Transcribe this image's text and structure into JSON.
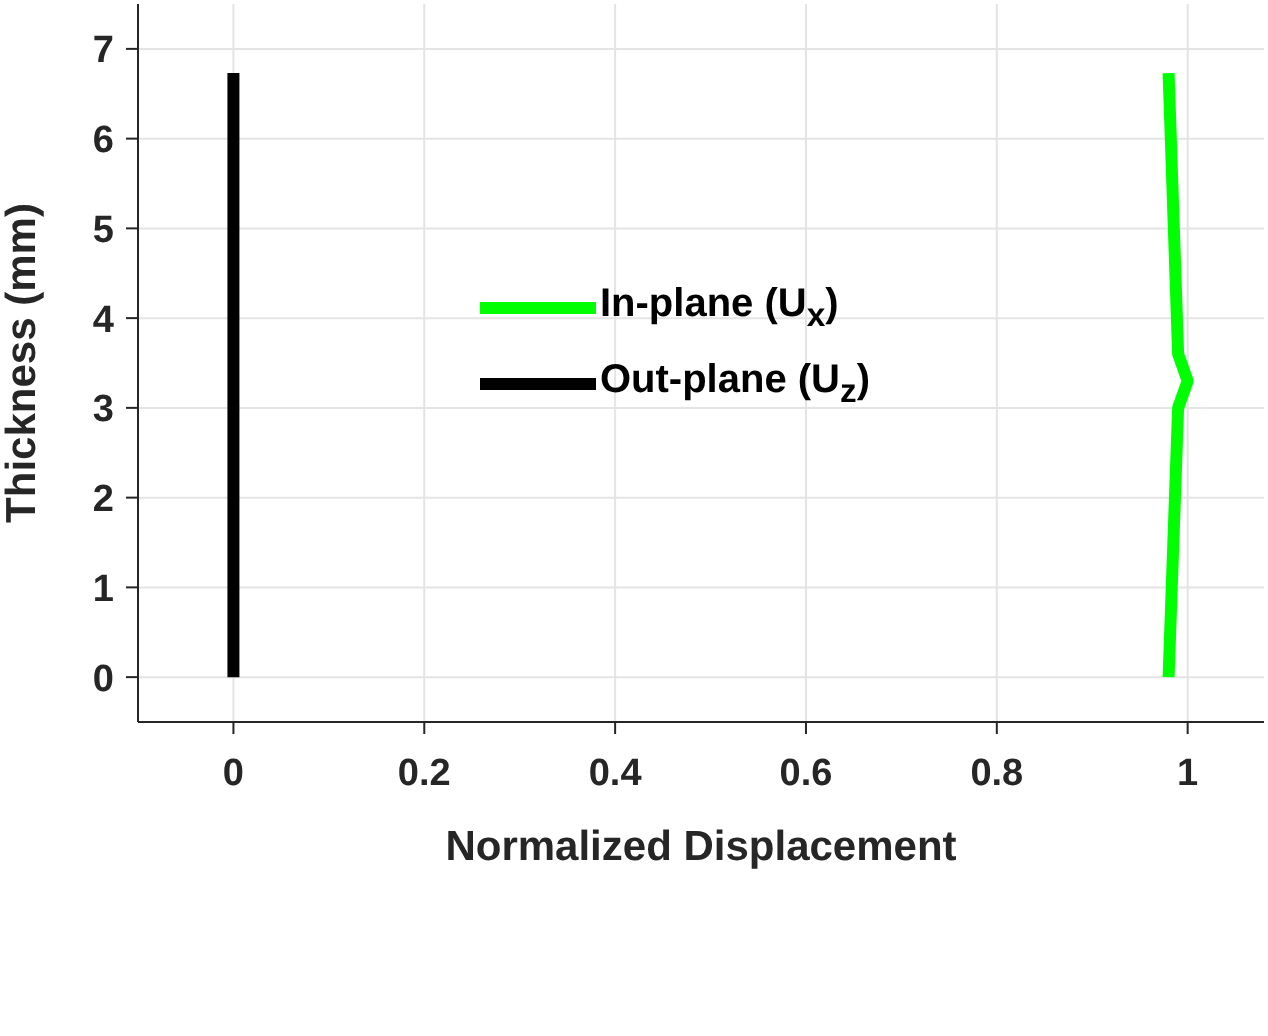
{
  "chart_data": {
    "type": "line",
    "xlabel": "Normalized Displacement",
    "ylabel": "Thickness (mm)",
    "series": [
      {
        "name": "In-plane (U$_{x}$)",
        "color": "#00ff00",
        "x": [
          0.98,
          0.99,
          1.0,
          0.99,
          0.98
        ],
        "values": [
          0,
          3.0,
          3.3,
          3.6,
          6.73
        ]
      },
      {
        "name": "Out-plane (U$_{z}$)",
        "color": "#000000",
        "x": [
          0,
          0
        ],
        "values": [
          0,
          6.73
        ]
      }
    ],
    "xlim": [
      -0.1,
      1.08
    ],
    "xticks": [
      0,
      0.2,
      0.4,
      0.6,
      0.8,
      1
    ],
    "ylim": [
      -0.5,
      7.5
    ],
    "yticks": [
      0,
      1,
      2,
      3,
      4,
      5,
      6,
      7
    ],
    "grid": true,
    "legend": "top",
    "marker": "none",
    "line_style": "solid"
  }
}
